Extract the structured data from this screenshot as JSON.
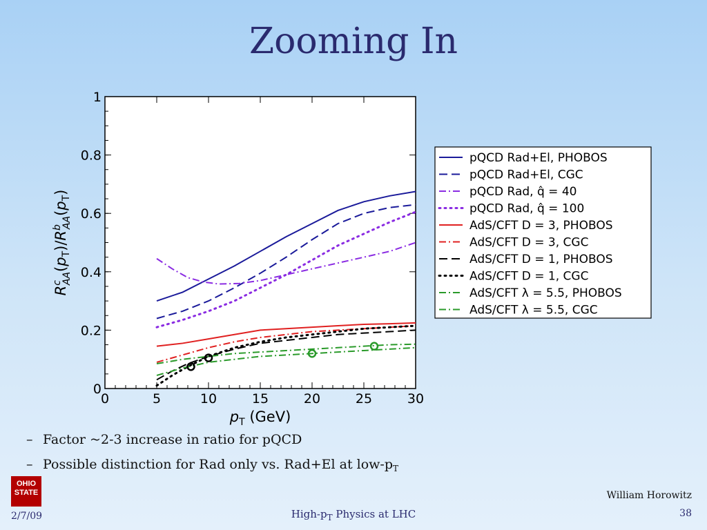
{
  "slide": {
    "title": "Zooming In",
    "bullets": [
      {
        "text": "Factor ~2-3 increase in ratio for pQCD"
      },
      {
        "text": "Possible distinction for Rad only vs. Rad+El at low-p",
        "sub": "T"
      }
    ],
    "bullet_marker": "–",
    "logo": "OHIO STATE",
    "footer": {
      "date": "2/7/09",
      "center_pre": "High-p",
      "center_sub": "T",
      "center_post": " Physics at LHC",
      "author": "William Horowitz",
      "page": "38"
    }
  },
  "chart_data": {
    "type": "line",
    "xlabel": "pT (GeV)",
    "ylabel": "R^c_AA(pT)/R^b_AA(pT)",
    "xlim": [
      0,
      30
    ],
    "ylim": [
      0,
      1
    ],
    "xticks": [
      0,
      5,
      10,
      15,
      20,
      25,
      30
    ],
    "yticks": [
      0,
      0.2,
      0.4,
      0.6,
      0.8,
      1
    ],
    "ytick_labels": [
      "0",
      "0.2",
      "0.4",
      "0.6",
      "0.8",
      "1"
    ],
    "legend_position": "right",
    "series": [
      {
        "name": "pQCD Rad+El, PHOBOS",
        "color": "#1a1a9a",
        "dash": "solid",
        "x": [
          5,
          7.5,
          10,
          12.5,
          15,
          17.5,
          20,
          22.5,
          25,
          27.5,
          30
        ],
        "y": [
          0.3,
          0.33,
          0.375,
          0.42,
          0.47,
          0.52,
          0.565,
          0.61,
          0.64,
          0.66,
          0.675
        ]
      },
      {
        "name": "pQCD Rad+El, CGC",
        "color": "#1a1a9a",
        "dash": "long",
        "x": [
          5,
          7.5,
          10,
          12.5,
          15,
          17.5,
          20,
          22.5,
          25,
          27.5,
          30
        ],
        "y": [
          0.24,
          0.265,
          0.3,
          0.345,
          0.395,
          0.45,
          0.51,
          0.565,
          0.6,
          0.62,
          0.63
        ]
      },
      {
        "name": "pQCD Rad, q̂ = 40",
        "color": "#8a2be2",
        "dash": "dashdot",
        "x": [
          5,
          6.5,
          8,
          9.5,
          11,
          13,
          15,
          17.5,
          20,
          22.5,
          25,
          27.5,
          30
        ],
        "y": [
          0.445,
          0.41,
          0.38,
          0.365,
          0.358,
          0.36,
          0.37,
          0.39,
          0.41,
          0.43,
          0.45,
          0.47,
          0.5
        ]
      },
      {
        "name": "pQCD Rad, q̂ = 100",
        "color": "#8a2be2",
        "dash": "dot",
        "x": [
          5,
          7.5,
          10,
          12.5,
          15,
          17.5,
          20,
          22.5,
          25,
          27.5,
          30
        ],
        "y": [
          0.21,
          0.235,
          0.265,
          0.3,
          0.345,
          0.39,
          0.44,
          0.49,
          0.53,
          0.57,
          0.605
        ]
      },
      {
        "name": "AdS/CFT D = 3, PHOBOS",
        "color": "#e02020",
        "dash": "solid",
        "x": [
          5,
          7.5,
          10,
          12.5,
          15,
          17.5,
          20,
          22.5,
          25,
          27.5,
          30
        ],
        "y": [
          0.145,
          0.155,
          0.17,
          0.185,
          0.2,
          0.205,
          0.21,
          0.215,
          0.22,
          0.222,
          0.225
        ]
      },
      {
        "name": "AdS/CFT D = 3, CGC",
        "color": "#e02020",
        "dash": "dashdot",
        "x": [
          5,
          7.5,
          10,
          12.5,
          15,
          17.5,
          20,
          22.5,
          25,
          27.5,
          30
        ],
        "y": [
          0.09,
          0.115,
          0.14,
          0.16,
          0.175,
          0.185,
          0.195,
          0.2,
          0.205,
          0.21,
          0.215
        ]
      },
      {
        "name": "AdS/CFT D = 1, PHOBOS",
        "color": "#000000",
        "dash": "long",
        "x": [
          5,
          6.5,
          8,
          10,
          12.5,
          15,
          17.5,
          20,
          22.5,
          25,
          27.5,
          30
        ],
        "y": [
          0.03,
          0.06,
          0.085,
          0.11,
          0.135,
          0.155,
          0.165,
          0.175,
          0.185,
          0.19,
          0.195,
          0.2
        ]
      },
      {
        "name": "AdS/CFT D = 1, CGC",
        "color": "#000000",
        "dash": "dot",
        "x": [
          5,
          6.5,
          8,
          10,
          12.5,
          15,
          17.5,
          20,
          22.5,
          25,
          27.5,
          30
        ],
        "y": [
          0.01,
          0.045,
          0.075,
          0.11,
          0.14,
          0.16,
          0.175,
          0.185,
          0.195,
          0.205,
          0.21,
          0.215
        ]
      },
      {
        "name": "AdS/CFT λ = 5.5, PHOBOS",
        "color": "#2a9a2a",
        "dash": "dashdot",
        "x": [
          5,
          7.5,
          10,
          12.5,
          15,
          17.5,
          20,
          22.5,
          25,
          27.5,
          30
        ],
        "y": [
          0.085,
          0.1,
          0.11,
          0.12,
          0.125,
          0.13,
          0.135,
          0.14,
          0.145,
          0.15,
          0.152
        ]
      },
      {
        "name": "AdS/CFT λ = 5.5, CGC",
        "color": "#2a9a2a",
        "dash": "dashdot",
        "x": [
          5,
          7.5,
          10,
          12.5,
          15,
          17.5,
          20,
          22.5,
          25,
          27.5,
          30
        ],
        "y": [
          0.045,
          0.07,
          0.09,
          0.1,
          0.11,
          0.115,
          0.12,
          0.125,
          0.13,
          0.135,
          0.14
        ]
      }
    ],
    "markers": [
      {
        "x": 8.3,
        "y": 0.075,
        "color": "#000000"
      },
      {
        "x": 10.0,
        "y": 0.105,
        "color": "#000000"
      },
      {
        "x": 20.0,
        "y": 0.12,
        "color": "#2a9a2a"
      },
      {
        "x": 26.0,
        "y": 0.145,
        "color": "#2a9a2a"
      }
    ]
  }
}
